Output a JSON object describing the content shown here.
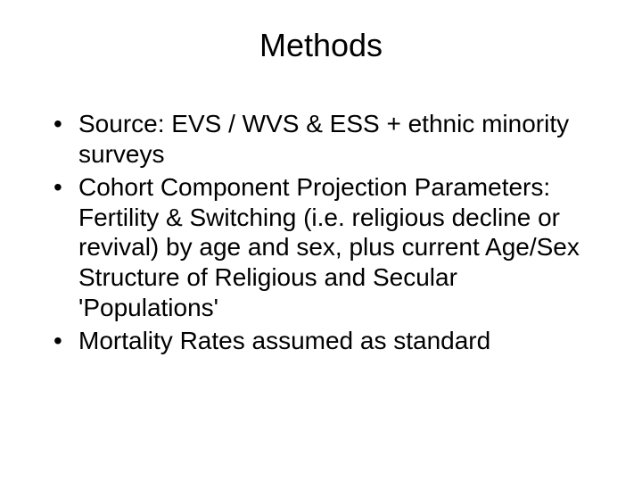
{
  "slide": {
    "title": "Methods",
    "title_fontsize": 36,
    "body_fontsize": 28,
    "background_color": "#ffffff",
    "text_color": "#000000",
    "font_family": "Arial",
    "bullets": [
      "Source: EVS / WVS & ESS + ethnic minority surveys",
      "Cohort Component Projection Parameters: Fertility & Switching (i.e. religious decline or revival) by age and sex, plus current Age/Sex Structure of Religious and Secular 'Populations'",
      "Mortality Rates assumed as standard"
    ]
  }
}
